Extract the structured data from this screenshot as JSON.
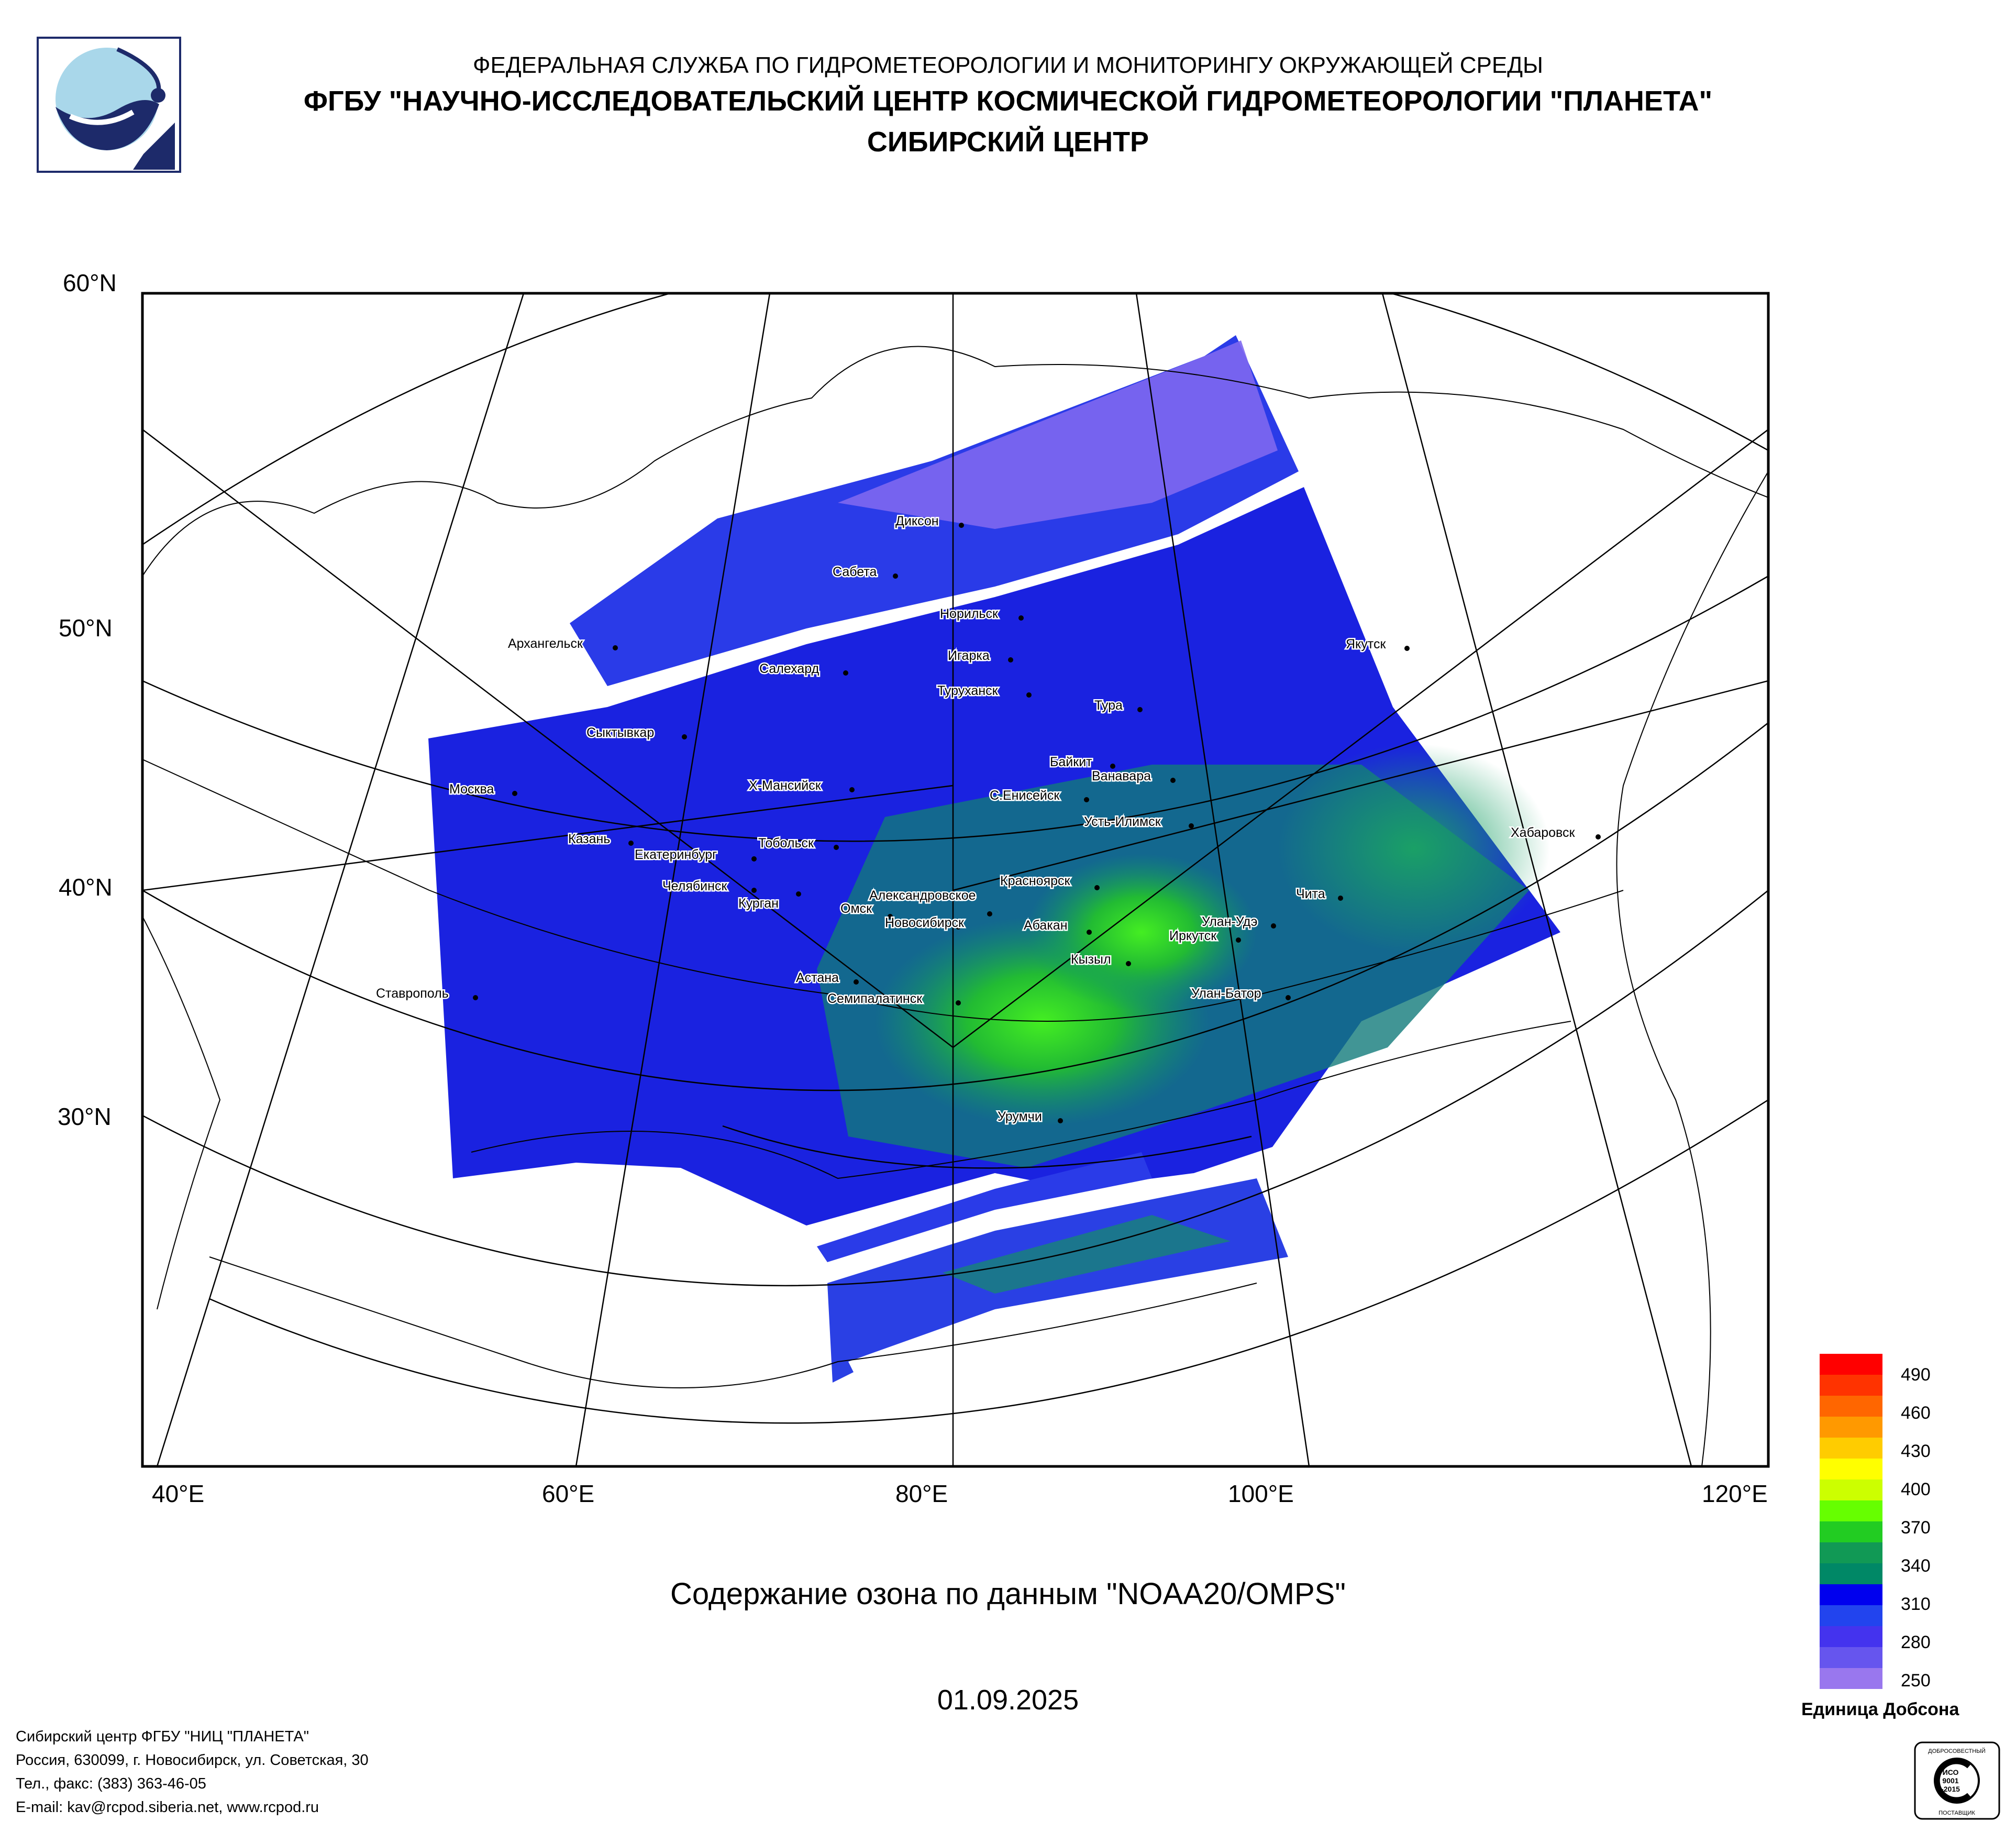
{
  "header": {
    "line1": "ФЕДЕРАЛЬНАЯ СЛУЖБА ПО ГИДРОМЕТЕОРОЛОГИИ И МОНИТОРИНГУ ОКРУЖАЮЩЕЙ СРЕДЫ",
    "line2": "ФГБУ \"НАУЧНО-ИССЛЕДОВАТЕЛЬСКИЙ ЦЕНТР КОСМИЧЕСКОЙ ГИДРОМЕТЕОРОЛОГИИ \"ПЛАНЕТА\"",
    "line3": "СИБИРСКИЙ ЦЕНТР"
  },
  "map": {
    "lat_labels": [
      "60°N",
      "50°N",
      "40°N",
      "30°N"
    ],
    "lon_labels": [
      "40°E",
      "60°E",
      "80°E",
      "100°E",
      "120°E"
    ],
    "cities": [
      "Диксон",
      "Сабета",
      "Норильск",
      "Игарка",
      "Архангельск",
      "Салехард",
      "Туруханск",
      "Тура",
      "Якутск",
      "Сыктывкар",
      "Байкит",
      "Ванавара",
      "Москва",
      "Х-Мансийск",
      "С.Енисейск",
      "Усть-Илимск",
      "Хабаровск",
      "Казань",
      "Тобольск",
      "Екатеринбург",
      "Челябинск",
      "Красноярск",
      "Курган",
      "Александровское",
      "Омск",
      "Чита",
      "Новосибирск",
      "Абакан",
      "Улан-Удэ",
      "Иркутск",
      "Кызыл",
      "Ставрополь",
      "Астана",
      "Семипалатинск",
      "Улан-Батор",
      "Урумчи"
    ]
  },
  "title": "Содержание озона по данным \"NOAA20/OMPS\"",
  "date": "01.09.2025",
  "legend": {
    "ticks": [
      "490",
      "460",
      "430",
      "400",
      "370",
      "340",
      "310",
      "280",
      "250"
    ],
    "unit": "Единица Добсона",
    "colors": [
      "#ff0000",
      "#ff3300",
      "#ff6600",
      "#ff9900",
      "#ffcc00",
      "#ffff00",
      "#ccff00",
      "#66ff00",
      "#22cc22",
      "#119955",
      "#008866",
      "#0000ee",
      "#2244ee",
      "#4433ee",
      "#6655ee",
      "#9977ee"
    ]
  },
  "footer": {
    "line1": "Сибирский центр ФГБУ \"НИЦ \"ПЛАНЕТА\"",
    "line2": "Россия, 630099, г. Новосибирск, ул. Советская, 30",
    "line3": "Тел., факс: (383) 363-46-05",
    "line4": "E-mail: kav@rcpod.siberia.net, www.rcpod.ru"
  },
  "certificate": {
    "top": "ДОБРОСОВЕСТНЫЙ",
    "mid1": "ИСО",
    "mid2": "9001",
    "mid3": "-2015",
    "bottom": "ПОСТАВЩИК"
  }
}
